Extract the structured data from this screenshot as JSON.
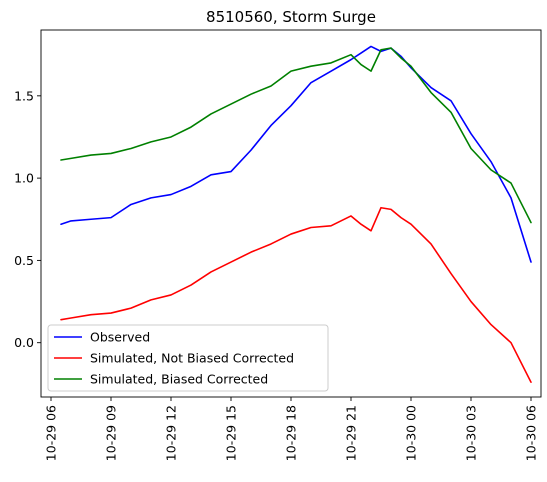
{
  "chart_data": {
    "type": "line",
    "title": "8510560, Storm Surge",
    "xlabel": "",
    "ylabel": "",
    "x_axis": {
      "unit": "datetime",
      "range": [
        "2012-10-29 05:30",
        "2012-10-30 06:30"
      ],
      "ticks": [
        "10-29 06",
        "10-29 09",
        "10-29 12",
        "10-29 15",
        "10-29 18",
        "10-29 21",
        "10-30 00",
        "10-30 03",
        "10-30 06"
      ]
    },
    "y_axis": {
      "range": [
        -0.33,
        1.9
      ],
      "ticks": [
        "0.0",
        "0.5",
        "1.0",
        "1.5"
      ],
      "tick_values": [
        0.0,
        0.5,
        1.0,
        1.5
      ]
    },
    "grid": false,
    "legend_position": "lower-left",
    "x": [
      "2012-10-29 06:30",
      "2012-10-29 07:00",
      "2012-10-29 08:00",
      "2012-10-29 09:00",
      "2012-10-29 10:00",
      "2012-10-29 11:00",
      "2012-10-29 12:00",
      "2012-10-29 13:00",
      "2012-10-29 14:00",
      "2012-10-29 15:00",
      "2012-10-29 16:00",
      "2012-10-29 17:00",
      "2012-10-29 18:00",
      "2012-10-29 19:00",
      "2012-10-29 20:00",
      "2012-10-29 21:00",
      "2012-10-29 21:30",
      "2012-10-29 22:00",
      "2012-10-29 22:30",
      "2012-10-29 23:00",
      "2012-10-29 23:30",
      "2012-10-30 00:00",
      "2012-10-30 01:00",
      "2012-10-30 02:00",
      "2012-10-30 03:00",
      "2012-10-30 04:00",
      "2012-10-30 05:00",
      "2012-10-30 06:00"
    ],
    "series": [
      {
        "name": "Observed",
        "color": "#0000ff",
        "values": [
          0.72,
          0.74,
          0.75,
          0.76,
          0.84,
          0.88,
          0.9,
          0.95,
          1.02,
          1.04,
          1.17,
          1.32,
          1.44,
          1.58,
          1.65,
          1.72,
          1.76,
          1.8,
          1.77,
          1.79,
          1.74,
          1.67,
          1.55,
          1.47,
          1.27,
          1.1,
          0.88,
          0.49
        ]
      },
      {
        "name": "Simulated, Not Biased Corrected",
        "color": "#ff0000",
        "values": [
          0.14,
          0.15,
          0.17,
          0.18,
          0.21,
          0.26,
          0.29,
          0.35,
          0.43,
          0.49,
          0.55,
          0.6,
          0.66,
          0.7,
          0.71,
          0.77,
          0.72,
          0.68,
          0.82,
          0.81,
          0.76,
          0.72,
          0.6,
          0.42,
          0.25,
          0.11,
          0.0,
          -0.24
        ]
      },
      {
        "name": "Simulated, Biased Corrected",
        "color": "#008000",
        "values": [
          1.11,
          1.12,
          1.14,
          1.15,
          1.18,
          1.22,
          1.25,
          1.31,
          1.39,
          1.45,
          1.51,
          1.56,
          1.65,
          1.68,
          1.7,
          1.75,
          1.69,
          1.65,
          1.78,
          1.79,
          1.73,
          1.68,
          1.52,
          1.4,
          1.18,
          1.05,
          0.97,
          0.73
        ]
      }
    ]
  }
}
